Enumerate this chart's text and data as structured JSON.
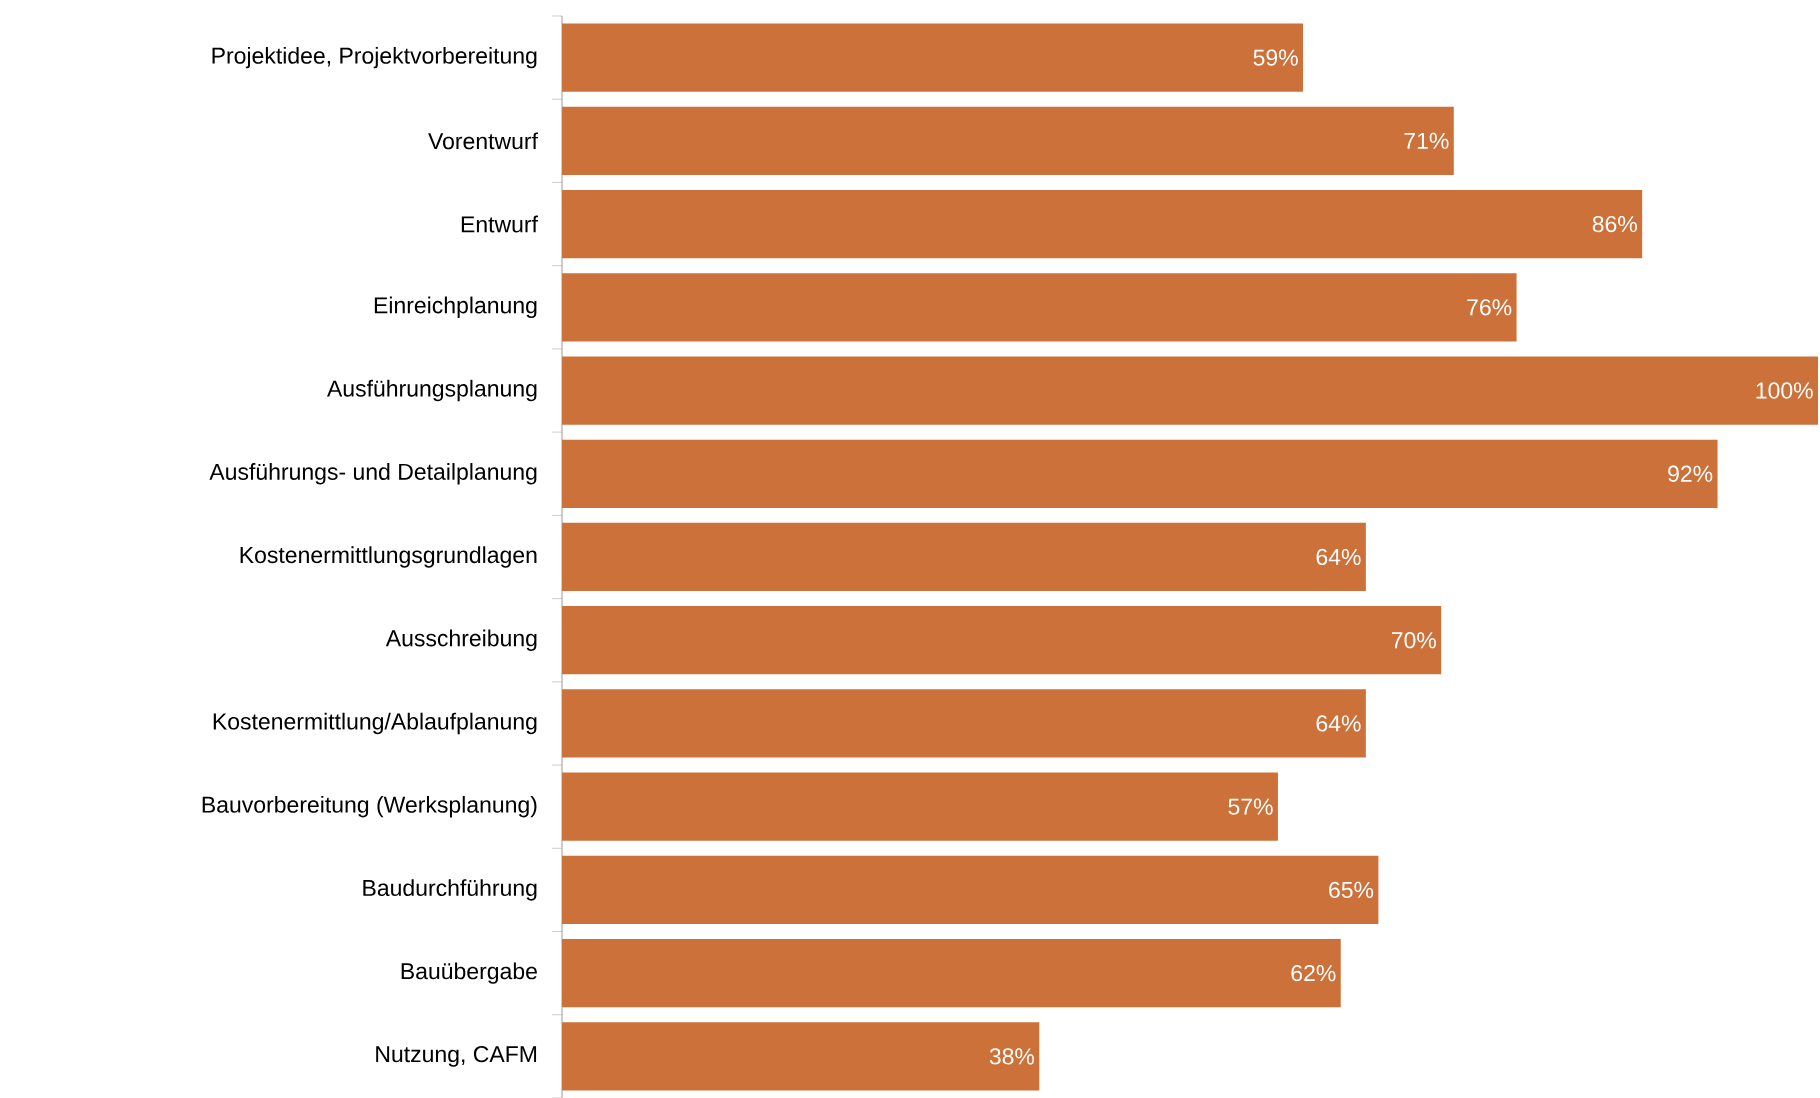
{
  "chart_data": {
    "type": "bar",
    "orientation": "horizontal",
    "color": "#cc7139",
    "categories": [
      "Projektidee, Projektvorbereitung",
      "Vorentwurf",
      "Entwurf",
      "Einreichplanung",
      "Ausführungsplanung",
      "Ausführungs- und Detailplanung",
      "Kostenermittlungsgrundlagen",
      "Ausschreibung",
      "Kostenermittlung/Ablaufplanung",
      "Bauvorbereitung (Werksplanung)",
      "Baudurchführung",
      "Bauübergabe",
      "Nutzung, CAFM"
    ],
    "values": [
      59,
      71,
      86,
      76,
      100,
      92,
      64,
      70,
      64,
      57,
      65,
      62,
      38
    ],
    "value_labels": [
      "59%",
      "71%",
      "86%",
      "76%",
      "100%",
      "92%",
      "64%",
      "70%",
      "64%",
      "57%",
      "65%",
      "62%",
      "38%"
    ]
  }
}
